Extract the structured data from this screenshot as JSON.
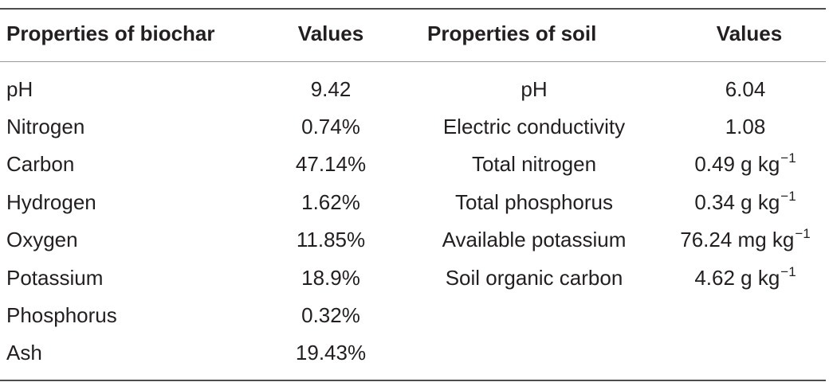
{
  "table": {
    "headers": [
      "Properties of biochar",
      "Values",
      "Properties of soil",
      "Values"
    ],
    "biochar_rows": [
      {
        "property": "pH",
        "value": "9.42"
      },
      {
        "property": "Nitrogen",
        "value": "0.74%"
      },
      {
        "property": "Carbon",
        "value": "47.14%"
      },
      {
        "property": "Hydrogen",
        "value": "1.62%"
      },
      {
        "property": "Oxygen",
        "value": "11.85%"
      },
      {
        "property": "Potassium",
        "value": "18.9%"
      },
      {
        "property": "Phosphorus",
        "value": "0.32%"
      },
      {
        "property": "Ash",
        "value": "19.43%"
      }
    ],
    "soil_rows": [
      {
        "property": "pH",
        "value": "6.04",
        "unit_exp": ""
      },
      {
        "property": "Electric conductivity",
        "value": "1.08",
        "unit_exp": ""
      },
      {
        "property": "Total nitrogen",
        "value": "0.49 g kg",
        "unit_exp": "−1"
      },
      {
        "property": "Total phosphorus",
        "value": "0.34 g kg",
        "unit_exp": "−1"
      },
      {
        "property": "Available potassium",
        "value": "76.24 mg kg",
        "unit_exp": "−1"
      },
      {
        "property": "Soil organic carbon",
        "value": "4.62 g kg",
        "unit_exp": "−1"
      }
    ]
  }
}
